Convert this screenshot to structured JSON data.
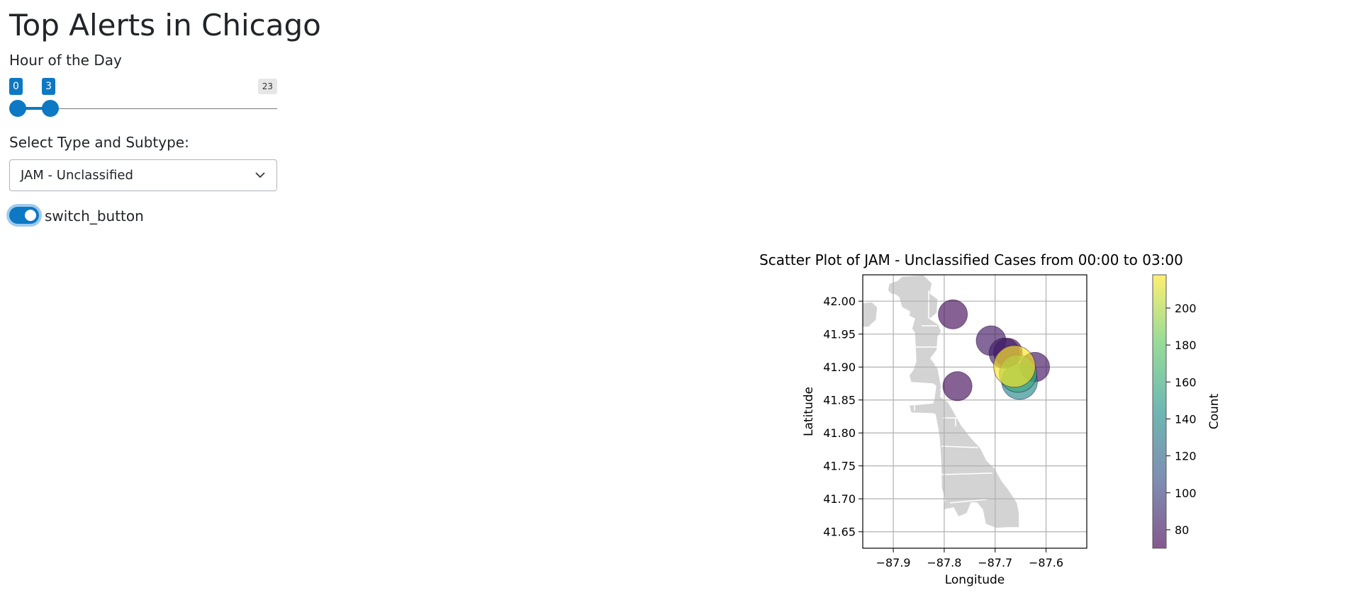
{
  "header": {
    "title": "Top Alerts in Chicago"
  },
  "controls": {
    "hour_label": "Hour of the Day",
    "slider": {
      "min_label": "23",
      "low_value": "0",
      "high_value": "3",
      "low": 0,
      "high": 3,
      "min": 0,
      "max": 23
    },
    "select_label": "Select Type and Subtype:",
    "select_value": "JAM - Unclassified",
    "switch_label": "switch_button",
    "switch_on": true
  },
  "chart_data": {
    "type": "scatter",
    "title": "Scatter Plot of JAM - Unclassified Cases from 00:00 to 03:00",
    "xlabel": "Longitude",
    "ylabel": "Latitude",
    "xlim": [
      -87.96,
      -87.52
    ],
    "ylim": [
      41.625,
      42.04
    ],
    "x_ticks": [
      -87.9,
      -87.8,
      -87.7,
      -87.6
    ],
    "x_tick_labels": [
      "−87.9",
      "−87.8",
      "−87.7",
      "−87.6"
    ],
    "y_ticks": [
      41.65,
      41.7,
      41.75,
      41.8,
      41.85,
      41.9,
      41.95,
      42.0
    ],
    "y_tick_labels": [
      "41.65",
      "41.70",
      "41.75",
      "41.80",
      "41.85",
      "41.90",
      "41.95",
      "42.00"
    ],
    "grid": true,
    "colorbar": {
      "label": "Count",
      "range": [
        70,
        218
      ],
      "ticks": [
        80,
        100,
        120,
        140,
        160,
        180,
        200
      ],
      "tick_labels": [
        "80",
        "100",
        "120",
        "140",
        "160",
        "180",
        "200"
      ],
      "colormap": "viridis"
    },
    "points": [
      {
        "x": -87.783,
        "y": 41.98,
        "count": 75
      },
      {
        "x": -87.774,
        "y": 41.871,
        "count": 75
      },
      {
        "x": -87.708,
        "y": 41.94,
        "count": 80
      },
      {
        "x": -87.682,
        "y": 41.921,
        "count": 85
      },
      {
        "x": -87.675,
        "y": 41.922,
        "count": 72
      },
      {
        "x": -87.622,
        "y": 41.9,
        "count": 78
      },
      {
        "x": -87.662,
        "y": 41.901,
        "count": 218
      },
      {
        "x": -87.655,
        "y": 41.89,
        "count": 160
      },
      {
        "x": -87.652,
        "y": 41.878,
        "count": 140
      }
    ],
    "colors": {
      "map_fill": "#d3d3d3",
      "grid": "#b0b0b0"
    }
  }
}
